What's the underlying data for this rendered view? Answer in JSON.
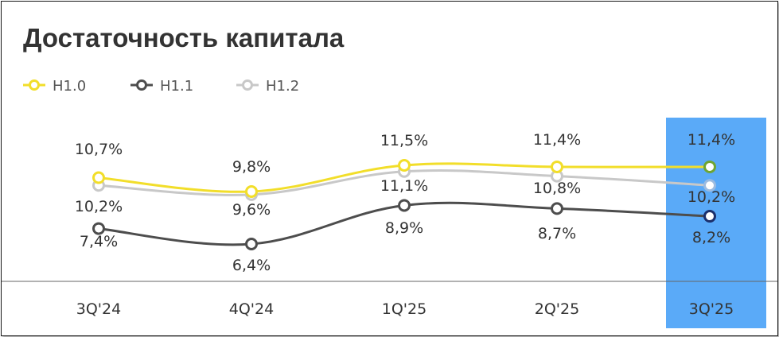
{
  "chart_data": {
    "type": "line",
    "title": "Достаточность капитала",
    "categories": [
      "3Q'24",
      "4Q'24",
      "1Q'25",
      "2Q'25",
      "3Q'25"
    ],
    "series": [
      {
        "name": "H1.0",
        "values": [
          10.7,
          9.8,
          11.5,
          11.4,
          11.4
        ],
        "labels": [
          "10,7%",
          "9,8%",
          "11,5%",
          "11,4%",
          "11,4%"
        ],
        "color": "#f2de2a",
        "last_point_color": "#6fa532"
      },
      {
        "name": "H1.1",
        "values": [
          7.4,
          6.4,
          8.9,
          8.7,
          8.2
        ],
        "labels": [
          "7,4%",
          "6,4%",
          "8,9%",
          "8,7%",
          "8,2%"
        ],
        "color": "#4d4d4d",
        "last_point_color": "#1b2f6b"
      },
      {
        "name": "H1.2",
        "values": [
          10.2,
          9.6,
          11.1,
          10.8,
          10.2
        ],
        "labels": [
          "10,2%",
          "9,6%",
          "11,1%",
          "10,8%",
          "10,2%"
        ],
        "color": "#c8c8c8",
        "last_point_color": "#9bbbe0"
      }
    ],
    "highlight_category": "3Q'25",
    "highlight_color": "#5aaaf8",
    "legend_position": "top-left",
    "grid": false
  }
}
